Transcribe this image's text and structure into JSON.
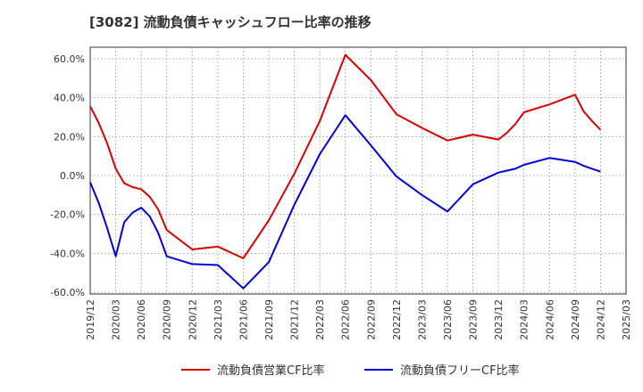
{
  "chart_data": {
    "type": "line",
    "title": "[3082]  流動負債キャッシュフロー比率の推移",
    "x": [
      "2019/12",
      "2020/01",
      "2020/02",
      "2020/03",
      "2020/04",
      "2020/05",
      "2020/06",
      "2020/07",
      "2020/08",
      "2020/09",
      "2020/12",
      "2021/03",
      "2021/06",
      "2021/09",
      "2021/12",
      "2022/03",
      "2022/06",
      "2022/09",
      "2022/12",
      "2023/03",
      "2023/06",
      "2023/09",
      "2023/12",
      "2024/01",
      "2024/02",
      "2024/03",
      "2024/06",
      "2024/09",
      "2024/10",
      "2024/11",
      "2024/12"
    ],
    "x_ticks": [
      "2019/12",
      "2020/03",
      "2020/06",
      "2020/09",
      "2020/12",
      "2021/03",
      "2021/06",
      "2021/09",
      "2021/12",
      "2022/03",
      "2022/06",
      "2022/09",
      "2022/12",
      "2023/03",
      "2023/06",
      "2023/09",
      "2023/12",
      "2024/03",
      "2024/06",
      "2024/09",
      "2024/12",
      "2025/03"
    ],
    "y_ticks": [
      "60.0%",
      "40.0%",
      "20.0%",
      "0.0%",
      "-20.0%",
      "-40.0%",
      "-60.0%"
    ],
    "ylim": [
      -60,
      65
    ],
    "grid": true,
    "legend_position": "bottom",
    "series": [
      {
        "name": "流動負債営業CF比率",
        "color": "#dd0000",
        "values": [
          35.5,
          27,
          16.5,
          3.5,
          -4,
          -6,
          -7,
          -11,
          -17.5,
          -28,
          -38,
          -36.5,
          -42.5,
          -23,
          1,
          28,
          62,
          49,
          31.5,
          24.5,
          18,
          21,
          18.5,
          22,
          26.5,
          32.5,
          36.5,
          41.5,
          33,
          28,
          23.5
        ]
      },
      {
        "name": "流動負債フリーCF比率",
        "color": "#0000dd",
        "values": [
          -3.5,
          -14,
          -27,
          -41.5,
          -24,
          -19,
          -16.5,
          -21,
          -29.5,
          -41.5,
          -45.5,
          -46,
          -58,
          -44.5,
          -15,
          11,
          31,
          15.5,
          -0.5,
          -10,
          -18.5,
          -4.5,
          1.5,
          2.5,
          3.5,
          5.5,
          9,
          7,
          5,
          3.5,
          2
        ]
      }
    ]
  }
}
